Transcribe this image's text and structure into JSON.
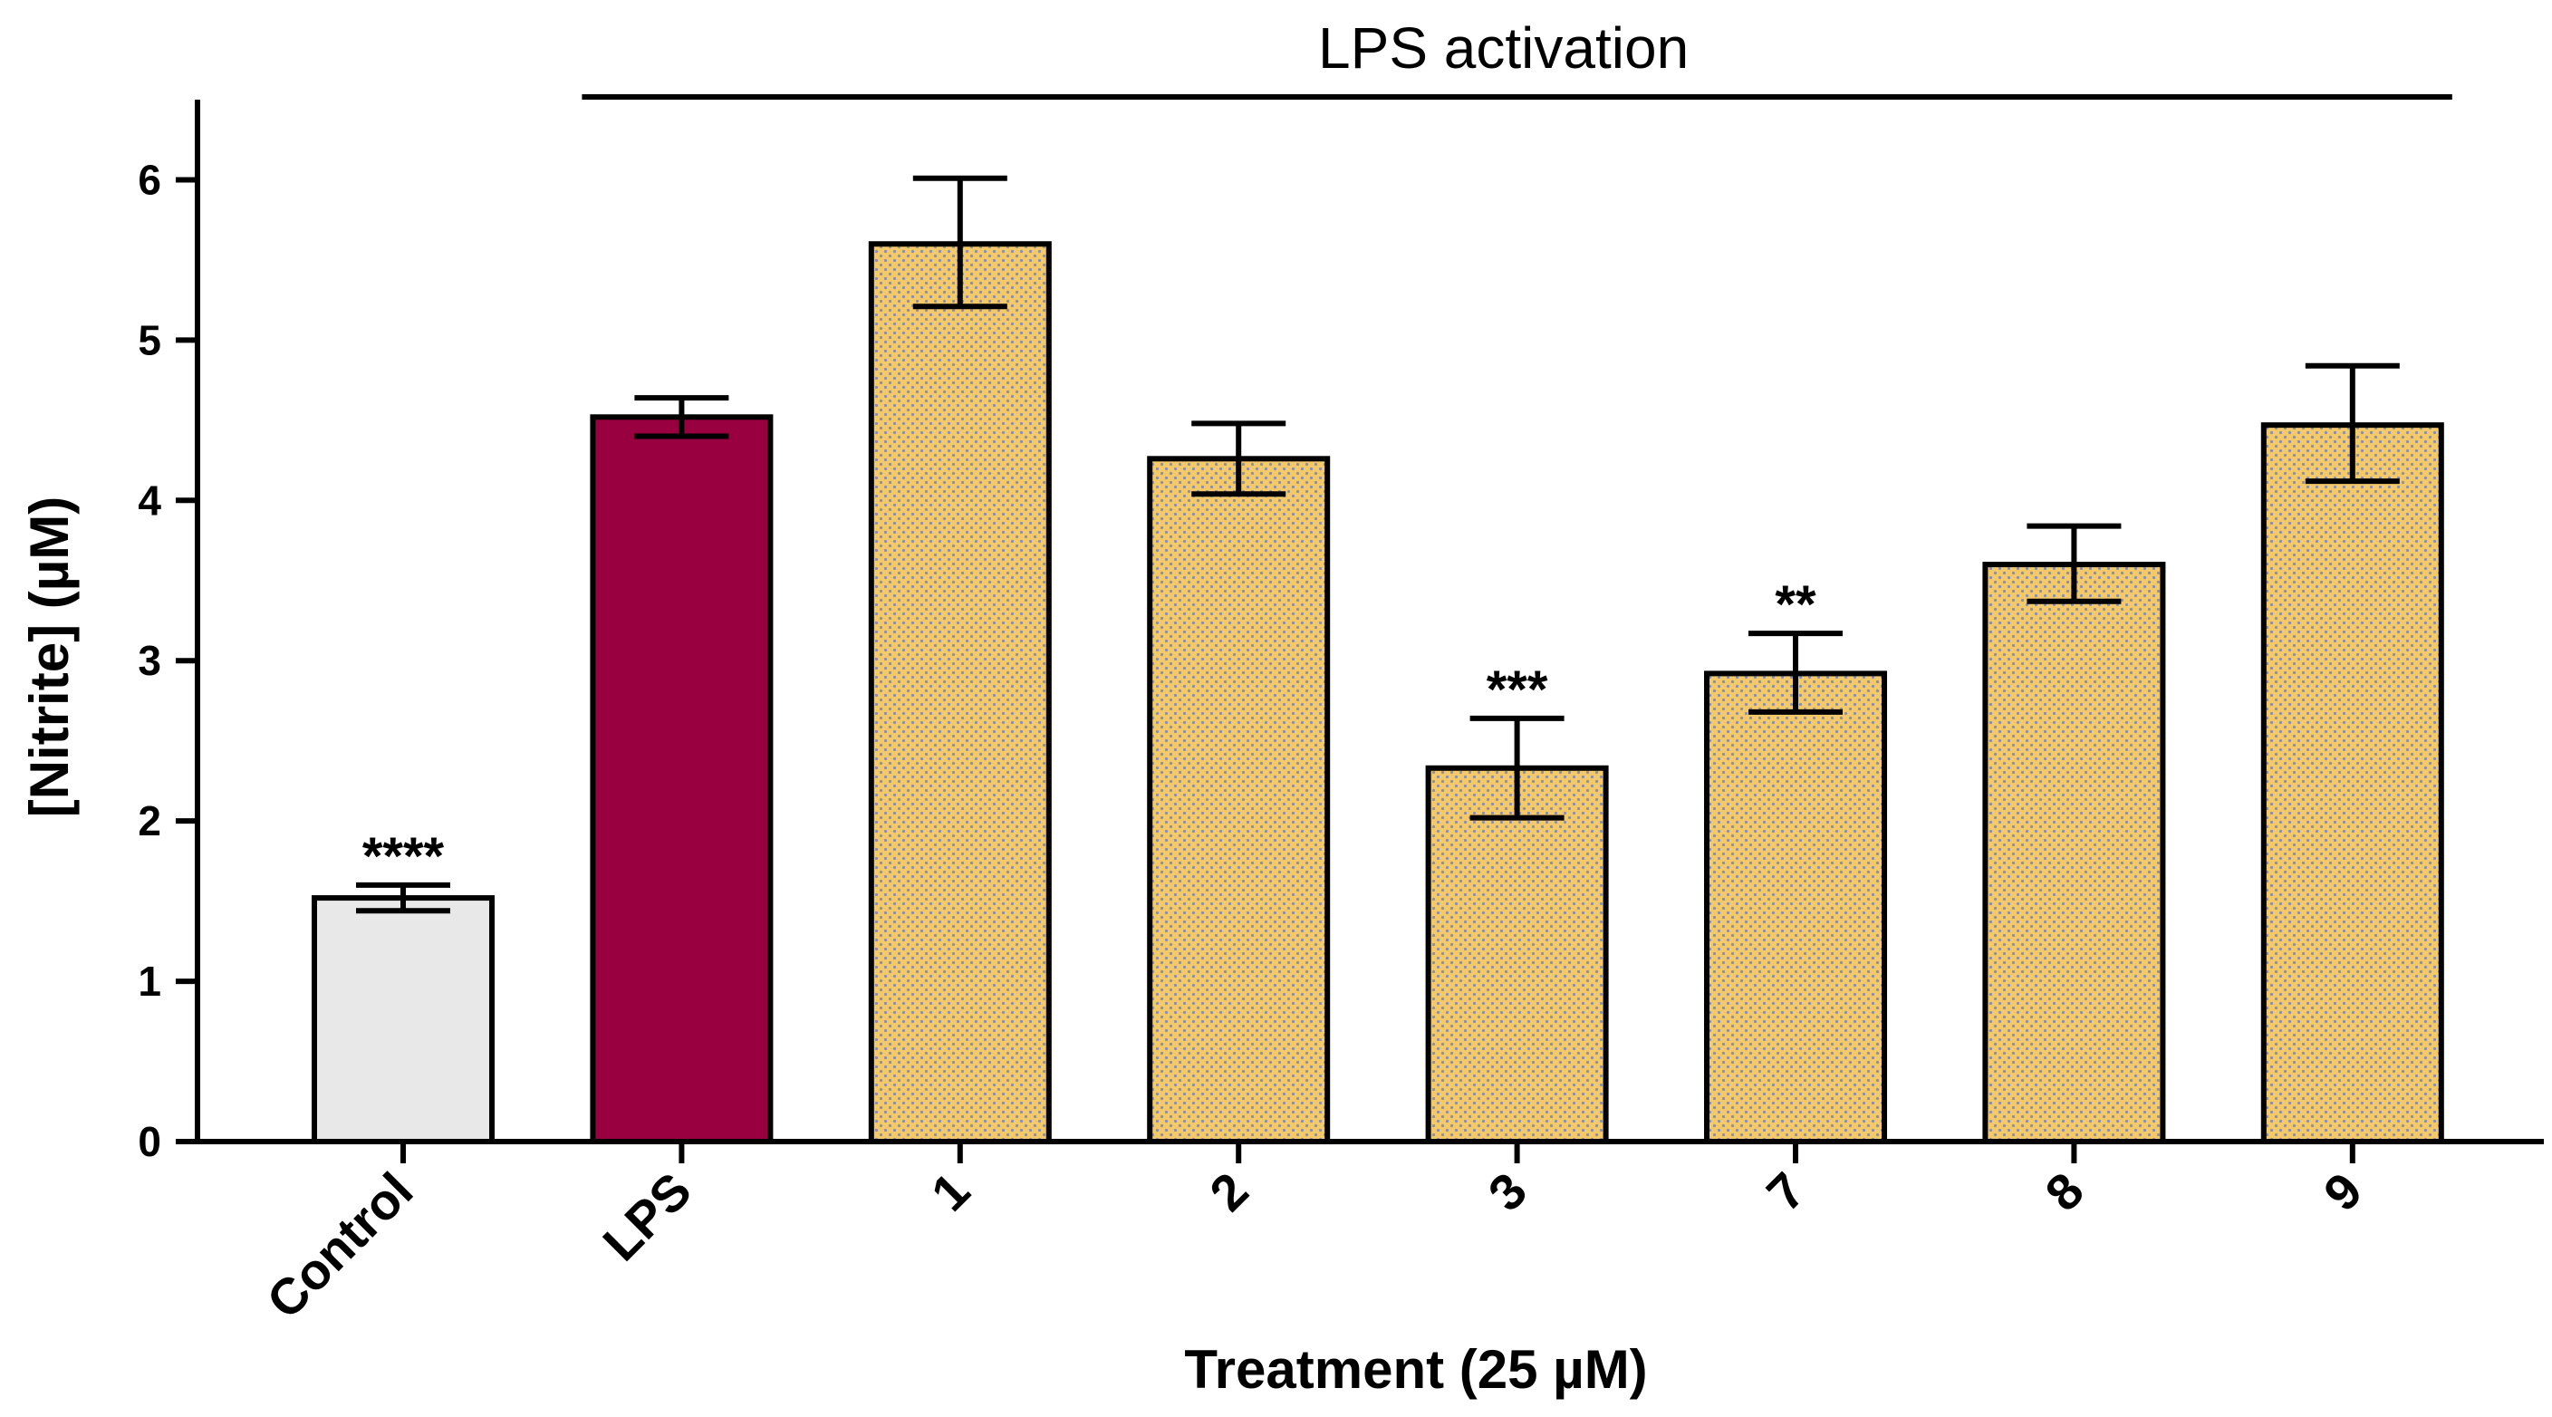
{
  "chart_data": {
    "type": "bar",
    "title": "",
    "xlabel": "Treatment (25 µM)",
    "ylabel": "[Nitrite] (µM)",
    "ylim": [
      0,
      6.5
    ],
    "yticks": [
      "0",
      "1",
      "2",
      "3",
      "4",
      "5",
      "6"
    ],
    "categories": [
      "Control",
      "LPS",
      "1",
      "2",
      "3",
      "7",
      "8",
      "9"
    ],
    "values": [
      1.52,
      4.52,
      5.6,
      4.26,
      2.33,
      2.92,
      3.6,
      4.47
    ],
    "error_low": [
      1.44,
      4.4,
      5.21,
      4.04,
      2.02,
      2.68,
      3.37,
      4.12
    ],
    "error_high": [
      1.6,
      4.64,
      6.01,
      4.48,
      2.64,
      3.17,
      3.84,
      4.84
    ],
    "significance": [
      "****",
      "",
      "",
      "",
      "***",
      "**",
      "",
      ""
    ],
    "fill_colors": [
      "#e8e8e8",
      "#990040",
      "#f3c96a",
      "#f3c96a",
      "#f3c96a",
      "#f3c96a",
      "#f3c96a",
      "#f3c96a"
    ],
    "patterned": [
      false,
      false,
      true,
      true,
      true,
      true,
      true,
      true
    ],
    "pattern_dot_color": "#8a8fb0",
    "group_header": {
      "label": "LPS activation",
      "first_category": "LPS",
      "last_category": "9"
    },
    "grid": false,
    "legend": "none"
  }
}
